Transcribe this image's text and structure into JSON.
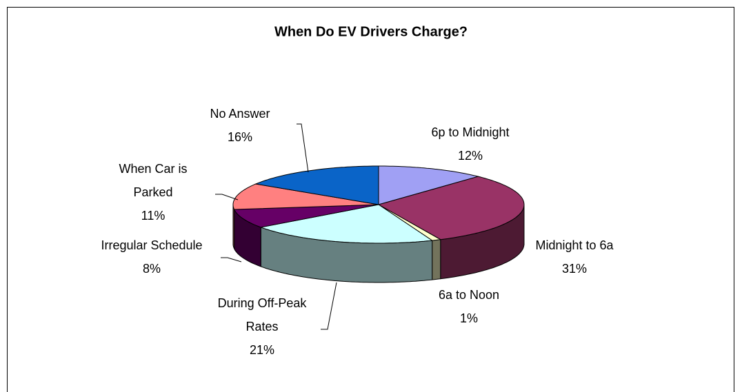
{
  "chart_data": {
    "type": "pie3d",
    "title": "When Do EV Drivers Charge?",
    "categories": [
      "6p to Midnight",
      "Midnight to 6a",
      "6a to Noon",
      "During Off-Peak Rates",
      "Irregular Schedule",
      "When Car is Parked",
      "No Answer"
    ],
    "values": [
      12,
      31,
      1,
      21,
      8,
      11,
      16
    ],
    "value_labels": [
      "12%",
      "31%",
      "1%",
      "21%",
      "8%",
      "11%",
      "16%"
    ],
    "colors": [
      "#a0a0f4",
      "#993366",
      "#ffffcc",
      "#ccffff",
      "#660066",
      "#ff8080",
      "#0a64c8"
    ]
  }
}
